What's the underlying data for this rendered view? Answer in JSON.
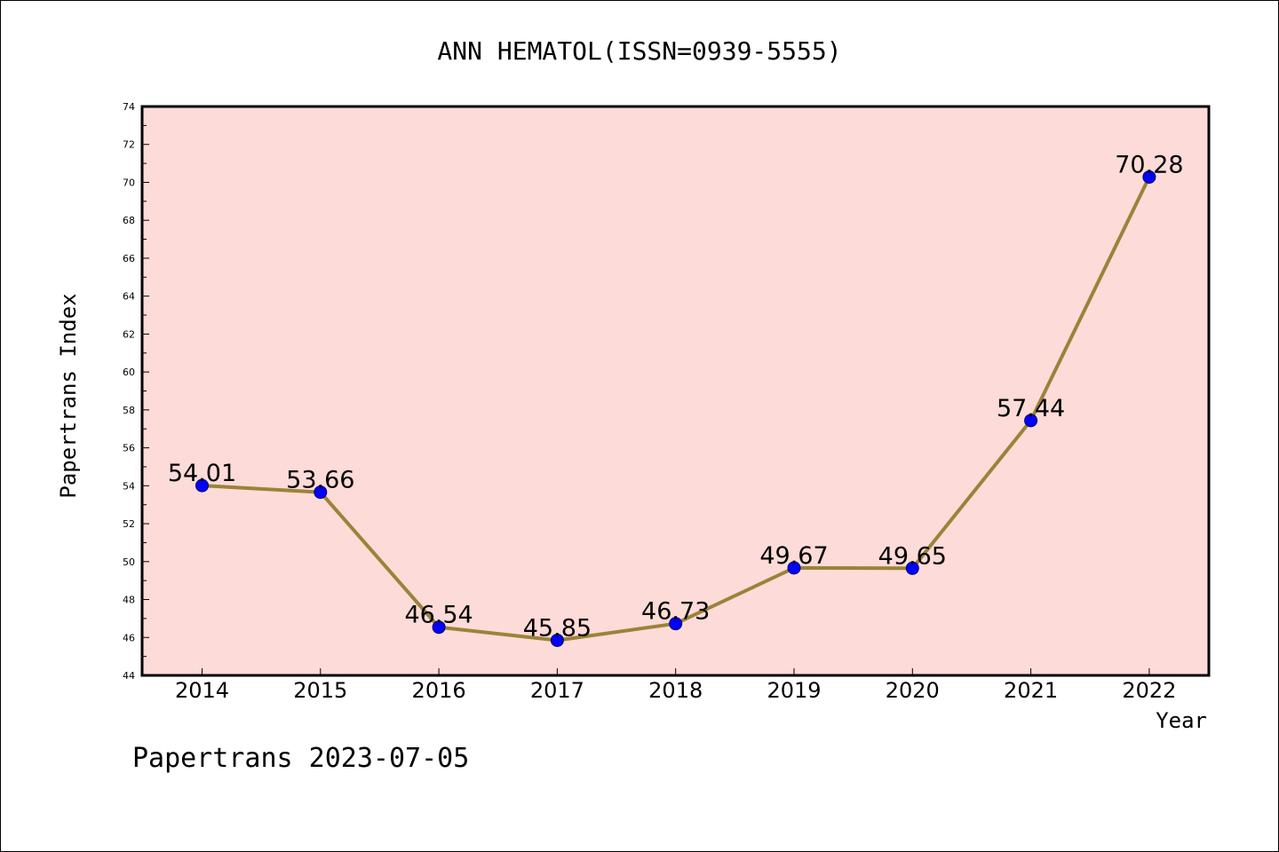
{
  "chart_data": {
    "type": "line",
    "title": "ANN HEMATOL(ISSN=0939-5555)",
    "xlabel": "Year",
    "ylabel": "Papertrans Index",
    "categories": [
      "2014",
      "2015",
      "2016",
      "2017",
      "2018",
      "2019",
      "2020",
      "2021",
      "2022"
    ],
    "series": [
      {
        "values": [
          54.01,
          53.66,
          46.54,
          45.85,
          46.73,
          49.67,
          49.65,
          57.44,
          70.28
        ]
      }
    ],
    "data_labels": [
      "54.01",
      "53.66",
      "46.54",
      "45.85",
      "46.73",
      "49.67",
      "49.65",
      "57.44",
      "70.28"
    ],
    "ylim": [
      44,
      74
    ],
    "yticks": [
      44,
      46,
      48,
      50,
      52,
      54,
      56,
      58,
      60,
      62,
      64,
      66,
      68,
      70,
      72,
      74
    ],
    "grid": false,
    "legend": "none",
    "colors": {
      "plot_background": "#fddbd8",
      "line": "#9a8339",
      "marker": "#0000ff"
    },
    "footer": "Papertrans 2023-07-05"
  }
}
